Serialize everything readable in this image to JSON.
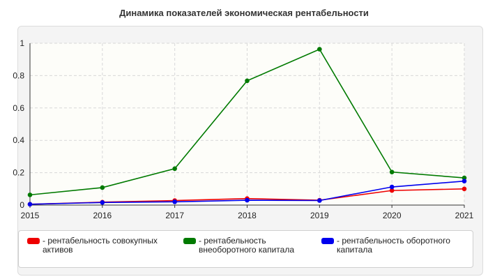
{
  "chart_data": {
    "type": "line",
    "title": "Динамика показателей экономическая рентабельности",
    "x": [
      "2015",
      "2016",
      "2017",
      "2018",
      "2019",
      "2020",
      "2021"
    ],
    "ylim": [
      0,
      1
    ],
    "yticks": [
      "0",
      "0.2",
      "0.4",
      "0.6",
      "0.8",
      "1"
    ],
    "grid": true,
    "legend_position": "bottom",
    "series": [
      {
        "name": "- рентабельность совокупных активов",
        "color": "#ee0000",
        "values": [
          0.005,
          0.018,
          0.028,
          0.04,
          0.03,
          0.09,
          0.1
        ]
      },
      {
        "name": "- рентабельность внеоборотного капитала",
        "color": "#007a00",
        "values": [
          0.063,
          0.108,
          0.225,
          0.768,
          0.963,
          0.204,
          0.168
        ]
      },
      {
        "name": "- рентабельность оборотного капитала",
        "color": "#0000ee",
        "values": [
          0.005,
          0.016,
          0.02,
          0.03,
          0.028,
          0.112,
          0.148
        ]
      }
    ]
  }
}
